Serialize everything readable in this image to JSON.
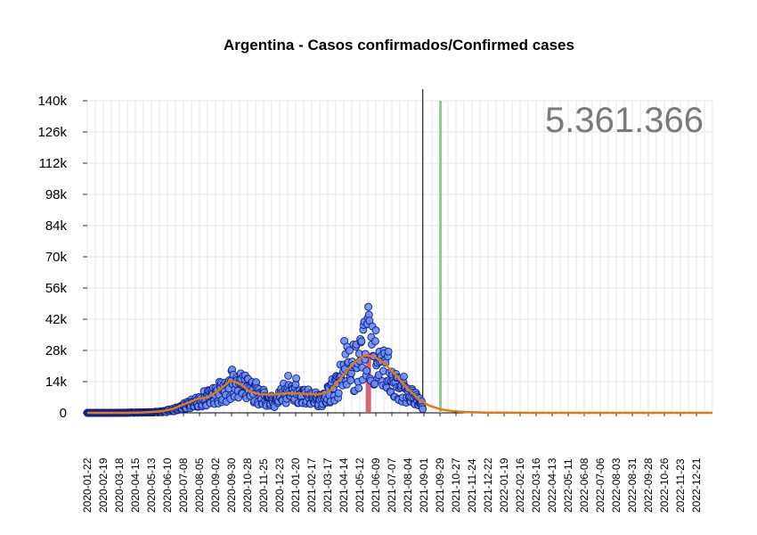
{
  "chart_data": {
    "type": "scatter",
    "title": "Argentina - Casos confirmados/Confirmed cases",
    "total_label": "5.361.366",
    "xlabel": "",
    "ylabel": "",
    "ylim": [
      0,
      140000
    ],
    "yticks": [
      0,
      14000,
      28000,
      42000,
      56000,
      70000,
      84000,
      98000,
      112000,
      126000,
      140000
    ],
    "ytick_labels": [
      "0",
      "14k",
      "28k",
      "42k",
      "56k",
      "70k",
      "84k",
      "98k",
      "112k",
      "126k",
      "140k"
    ],
    "x_start": "2020-01-22",
    "x_end": "2023-01-18",
    "xtick_labels": [
      "2020-01-22",
      "2020-02-19",
      "2020-03-18",
      "2020-04-15",
      "2020-05-13",
      "2020-06-10",
      "2020-07-08",
      "2020-08-05",
      "2020-09-02",
      "2020-09-30",
      "2020-10-28",
      "2020-11-25",
      "2020-12-23",
      "2021-01-20",
      "2021-02-17",
      "2021-03-17",
      "2021-04-14",
      "2021-05-12",
      "2021-06-09",
      "2021-07-07",
      "2021-08-04",
      "2021-09-01",
      "2021-09-29",
      "2021-10-27",
      "2021-11-24",
      "2021-12-22",
      "2022-01-19",
      "2022-02-16",
      "2022-03-16",
      "2022-04-13",
      "2022-05-11",
      "2022-06-08",
      "2022-07-06",
      "2022-08-03",
      "2022-08-31",
      "2022-09-28",
      "2022-10-26",
      "2022-11-23",
      "2022-12-21"
    ],
    "today_line": "2021-08-30",
    "green_line": "2021-09-30",
    "peak_bar": {
      "date": "2021-05-27",
      "value": 26000
    },
    "observed": [
      [
        "2020-01-22",
        0
      ],
      [
        "2020-03-01",
        0
      ],
      [
        "2020-04-01",
        100
      ],
      [
        "2020-04-20",
        150
      ],
      [
        "2020-05-10",
        250
      ],
      [
        "2020-05-31",
        600
      ],
      [
        "2020-06-15",
        1300
      ],
      [
        "2020-06-30",
        2300
      ],
      [
        "2020-07-15",
        3500
      ],
      [
        "2020-07-31",
        5000
      ],
      [
        "2020-08-15",
        7000
      ],
      [
        "2020-08-31",
        9500
      ],
      [
        "2020-09-15",
        11500
      ],
      [
        "2020-09-30",
        13500
      ],
      [
        "2020-10-15",
        14500
      ],
      [
        "2020-10-31",
        12500
      ],
      [
        "2020-11-15",
        9000
      ],
      [
        "2020-11-30",
        7000
      ],
      [
        "2020-12-15",
        6500
      ],
      [
        "2020-12-31",
        9500
      ],
      [
        "2021-01-10",
        12500
      ],
      [
        "2021-01-20",
        11000
      ],
      [
        "2021-01-31",
        9000
      ],
      [
        "2021-02-15",
        7500
      ],
      [
        "2021-02-28",
        7000
      ],
      [
        "2021-03-15",
        7500
      ],
      [
        "2021-03-31",
        13000
      ],
      [
        "2021-04-10",
        20000
      ],
      [
        "2021-04-20",
        25000
      ],
      [
        "2021-05-01",
        24000
      ],
      [
        "2021-05-10",
        26000
      ],
      [
        "2021-05-20",
        32000
      ],
      [
        "2021-05-27",
        36000
      ],
      [
        "2021-06-05",
        27000
      ],
      [
        "2021-06-15",
        24000
      ],
      [
        "2021-06-25",
        20000
      ],
      [
        "2021-07-05",
        18000
      ],
      [
        "2021-07-15",
        15000
      ],
      [
        "2021-07-25",
        12000
      ],
      [
        "2021-08-05",
        9500
      ],
      [
        "2021-08-15",
        7000
      ],
      [
        "2021-08-25",
        5000
      ],
      [
        "2021-08-30",
        3500
      ]
    ],
    "fit": [
      [
        "2020-01-22",
        0
      ],
      [
        "2020-04-01",
        0
      ],
      [
        "2020-05-01",
        200
      ],
      [
        "2020-06-01",
        700
      ],
      [
        "2020-06-20",
        1800
      ],
      [
        "2020-07-10",
        4000
      ],
      [
        "2020-08-01",
        6200
      ],
      [
        "2020-08-20",
        7000
      ],
      [
        "2020-09-10",
        10500
      ],
      [
        "2020-09-28",
        14500
      ],
      [
        "2020-10-15",
        13000
      ],
      [
        "2020-11-01",
        9500
      ],
      [
        "2020-11-20",
        8300
      ],
      [
        "2020-12-10",
        8200
      ],
      [
        "2021-01-05",
        8800
      ],
      [
        "2021-02-01",
        8600
      ],
      [
        "2021-03-01",
        8200
      ],
      [
        "2021-03-20",
        9600
      ],
      [
        "2021-04-10",
        16000
      ],
      [
        "2021-04-30",
        22000
      ],
      [
        "2021-05-20",
        25800
      ],
      [
        "2021-06-05",
        25400
      ],
      [
        "2021-06-25",
        22000
      ],
      [
        "2021-07-15",
        16500
      ],
      [
        "2021-08-05",
        10500
      ],
      [
        "2021-08-25",
        5600
      ],
      [
        "2021-09-10",
        3300
      ],
      [
        "2021-09-30",
        1600
      ],
      [
        "2021-10-20",
        800
      ],
      [
        "2021-11-15",
        300
      ],
      [
        "2021-12-20",
        100
      ],
      [
        "2022-03-01",
        20
      ],
      [
        "2023-01-18",
        0
      ]
    ],
    "colors": {
      "points_fill": "#6b8cf0",
      "points_stroke": "#10208a",
      "fit_line": "#e07a10",
      "today_line": "#000000",
      "green_line": "#90c890",
      "peak_bar": "#d04a5a",
      "grid": "#e6e6e6",
      "total_text": "#7a7a7a"
    }
  }
}
